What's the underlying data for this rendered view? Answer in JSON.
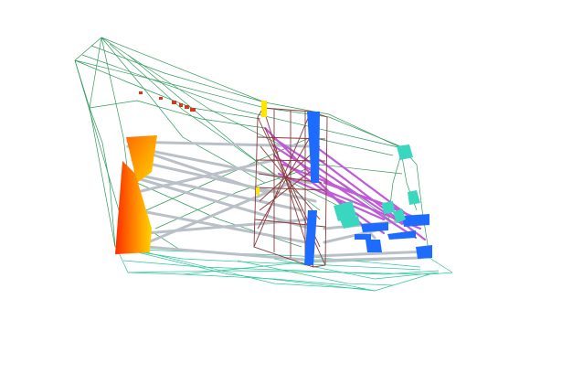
{
  "scene": {
    "background": "#ffffff",
    "colors": {
      "outer_wireframe": "#2e9a5a",
      "floor_wireframe": "#2ac79a",
      "truss_frame": "#8b3a3a",
      "gray_struts": "#b9c0c8",
      "purple_struts": "#c05ad8",
      "blue_members": "#1e6cff",
      "teal_members": "#39d6c0",
      "red_markers": "#d43a1a",
      "yellow_accent": "#ffe600",
      "gradient_start": "#ff2a00",
      "gradient_mid": "#ff8a00",
      "gradient_end": "#ffd400"
    }
  }
}
